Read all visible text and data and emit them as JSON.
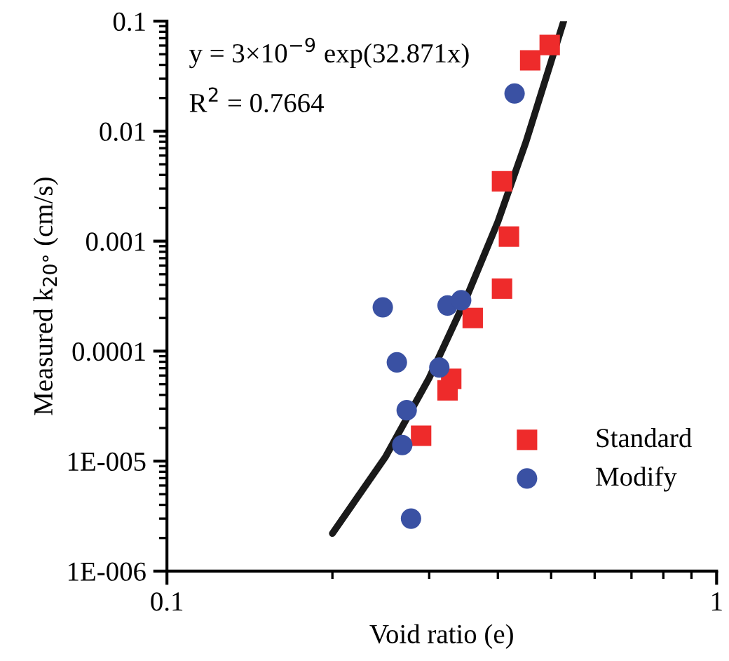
{
  "chart_data": {
    "type": "scatter",
    "xlabel": "Void ratio (e)",
    "ylabel": "Measured k$_{20°}$ (cm/s)",
    "log": "xy",
    "xlim": [
      0.1,
      1
    ],
    "ylim": [
      1e-06,
      0.1
    ],
    "xticks": [
      0.1,
      1
    ],
    "yticks": [
      {
        "value": 1e-06,
        "label": "1E-006"
      },
      {
        "value": 1e-05,
        "label": "1E-005"
      },
      0.0001,
      0.001,
      0.01,
      0.1
    ],
    "grid": false,
    "legend": "bottom right",
    "annotations": [
      "y = 3×10$^{−9}$ exp(32.871x)",
      "R$^{2}$ = 0.7664"
    ],
    "series": [
      {
        "name": "Standard",
        "color": "#ee2b2b",
        "marker": "square",
        "x": [
          0.497,
          0.458,
          0.407,
          0.419,
          0.407,
          0.36,
          0.329,
          0.324,
          0.29
        ],
        "values": [
          0.0607,
          0.044,
          0.0035,
          0.0011,
          0.00037,
          0.0002,
          5.6e-05,
          4.4e-05,
          1.7e-05
        ]
      },
      {
        "name": "Modify",
        "color": "#3a51a3",
        "marker": "circle",
        "x": [
          0.429,
          0.247,
          0.324,
          0.343,
          0.262,
          0.313,
          0.273,
          0.268,
          0.278
        ],
        "values": [
          0.022,
          0.00025,
          0.00026,
          0.00029,
          7.9e-05,
          7.1e-05,
          2.9e-05,
          1.4e-05,
          3e-06
        ]
      },
      {
        "type": "line",
        "color": "#1a1a1a",
        "marker": "none",
        "x": [
          0.2,
          0.25,
          0.3,
          0.35,
          0.4,
          0.45,
          0.5,
          0.527
        ],
        "values": [
          2.2e-06,
          1.1e-05,
          5.7e-05,
          0.0003,
          0.0015,
          0.008,
          0.043,
          0.1
        ]
      }
    ]
  }
}
